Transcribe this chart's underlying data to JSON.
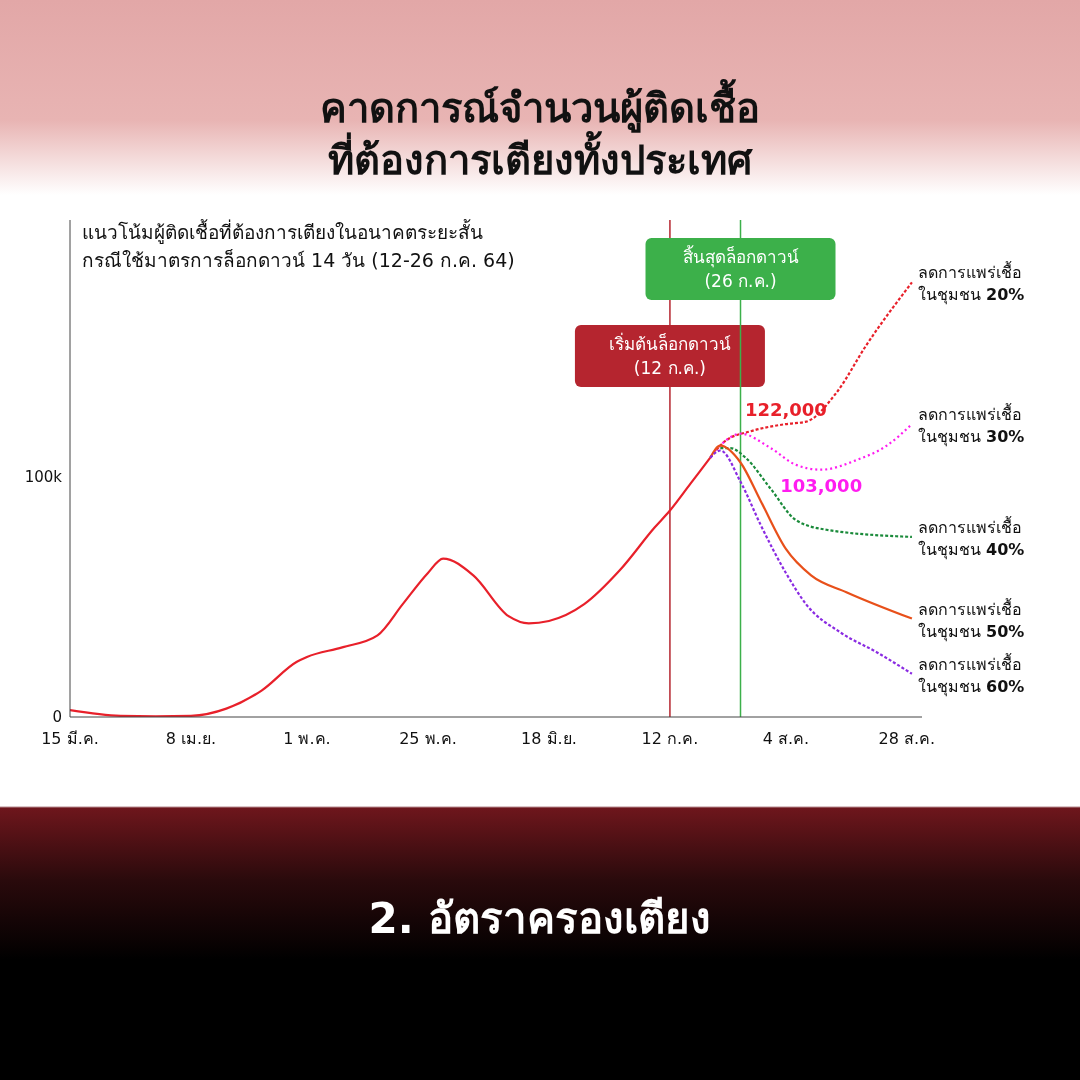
{
  "chart_data": {
    "type": "line",
    "title": "คาดการณ์จำนวนผู้ติดเชื้อ\nที่ต้องการเตียงทั้งประเทศ",
    "subtitle": "แนวโน้มผู้ติดเชื้อที่ต้องการเตียงในอนาคตระยะสั้น\nกรณีใช้มาตรการล็อกดาวน์ 14 วัน (12-26 ก.ค. 64)",
    "series": [
      {
        "color": "#e8202a",
        "line_style": "solid",
        "x": [
          "--03-15",
          "--03-25",
          "--04-01",
          "--04-08",
          "--04-15",
          "--04-22",
          "--04-29",
          "--05-01",
          "--05-08",
          "--05-15",
          "--05-20",
          "--05-25",
          "--05-28",
          "--06-03",
          "--06-10",
          "--06-14",
          "--06-18",
          "--06-25",
          "--07-02",
          "--07-09",
          "--07-12",
          "--07-16",
          "--07-20"
        ],
        "values": [
          2900,
          500,
          300,
          500,
          3500,
          11000,
          23000,
          25000,
          29000,
          34000,
          47000,
          60000,
          66000,
          59000,
          42000,
          39000,
          40000,
          47000,
          61000,
          79000,
          86000,
          97000,
          108000
        ]
      },
      {
        "name": "ลดการแพร่เชื้อ\nในชุมชน 20%",
        "color": "#e8202a",
        "line_style": "dashed",
        "x": [
          "--07-20",
          "--07-23",
          "--07-28",
          "--08-04",
          "--08-08",
          "--08-14",
          "--08-20",
          "--08-29"
        ],
        "values": [
          108000,
          115000,
          119000,
          122000,
          123000,
          135000,
          155000,
          181000
        ]
      },
      {
        "name": "ลดการแพร่เชื้อ\nในชุมชน 30%",
        "color": "#ff1cf0",
        "line_style": "dotted",
        "x": [
          "--07-21",
          "--07-23",
          "--07-26",
          "--08-01",
          "--08-06",
          "--08-11",
          "--08-18",
          "--08-24",
          "--08-29"
        ],
        "values": [
          111000,
          115000,
          118000,
          112000,
          105000,
          103000,
          107000,
          113000,
          122000
        ]
      },
      {
        "name": "ลดการแพร่เชื้อ\nในชุมชน 40%",
        "color": "#1a8a3a",
        "line_style": "dashed",
        "x": [
          "--07-22",
          "--07-24",
          "--07-27",
          "--08-01",
          "--08-06",
          "--08-12",
          "--08-29"
        ],
        "values": [
          112000,
          112000,
          108000,
          95000,
          82000,
          78000,
          75000
        ]
      },
      {
        "name": "ลดการแพร่เชื้อ\nในชุมชน 50%",
        "color": "#e8501a",
        "line_style": "solid",
        "x": [
          "--07-20",
          "--07-22",
          "--07-26",
          "--07-30",
          "--08-04",
          "--08-09",
          "--08-16",
          "--08-29"
        ],
        "values": [
          108000,
          113000,
          106000,
          90000,
          70000,
          59000,
          52000,
          41000
        ]
      },
      {
        "name": "ลดการแพร่เชื้อ\nในชุมชน 60%",
        "color": "#8a2be2",
        "line_style": "dashed",
        "x": [
          "--07-20",
          "--07-22",
          "--07-26",
          "--07-30",
          "--08-04",
          "--08-08",
          "--08-15",
          "--08-22",
          "--08-29"
        ],
        "values": [
          108000,
          111000,
          98000,
          80000,
          60000,
          47000,
          35000,
          27000,
          18000
        ]
      }
    ],
    "xlim": [
      "--03-15",
      "--08-31"
    ],
    "xticks": [
      {
        "value": "--03-15",
        "label": "15 มี.ค."
      },
      {
        "value": "--04-08",
        "label": "8 เม.ย."
      },
      {
        "value": "--05-01",
        "label": "1 พ.ค."
      },
      {
        "value": "--05-25",
        "label": "25 พ.ค."
      },
      {
        "value": "--06-18",
        "label": "18 มิ.ย."
      },
      {
        "value": "--07-12",
        "label": "12 ก.ค."
      },
      {
        "value": "--08-04",
        "label": "4 ส.ค."
      },
      {
        "value": "--08-28",
        "label": "28 ส.ค."
      }
    ],
    "ylim": [
      0,
      207000
    ],
    "yticks": [
      0,
      {
        "value": 100000,
        "label": "100k"
      }
    ],
    "ref_lines": [
      {
        "axis": "x",
        "value": "--07-12",
        "label": "เริ่มต้นล็อกดาวน์\n(12 ก.ค.)",
        "color": "#b5252f"
      },
      {
        "axis": "x",
        "value": "--07-26",
        "label": "สิ้นสุดล็อกดาวน์\n(26 ก.ค.)",
        "color": "#3cb04a"
      }
    ],
    "annotations": [
      {
        "text": "122,000",
        "x": "--08-04",
        "y": 122000
      },
      {
        "text": "103,000",
        "x": "--08-11",
        "y": 103000
      },
      "2. อัตราครองเตียง"
    ]
  }
}
